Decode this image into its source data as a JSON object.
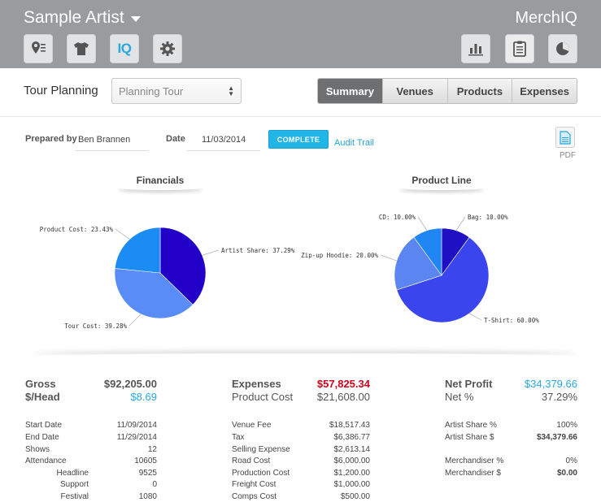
{
  "header": {
    "artist_name": "Sample Artist",
    "brand": "MerchIQ",
    "left_buttons": [
      "venue-pin-icon",
      "tshirt-icon",
      "iq-icon",
      "gear-icon"
    ],
    "iq_label": "IQ",
    "right_buttons": [
      "bar-chart-icon",
      "clipboard-icon",
      "pie-chart-icon"
    ]
  },
  "planning": {
    "label": "Tour Planning",
    "selected_tour": "Planning Tour",
    "tabs": [
      "Summary",
      "Venues",
      "Products",
      "Expenses"
    ],
    "active_tab": "Summary"
  },
  "meta": {
    "prepared_by_label": "Prepared by",
    "prepared_by": "Ben Brannen",
    "date_label": "Date",
    "date": "11/03/2014",
    "complete_label": "COMPLETE",
    "audit_label": "Audit Trail",
    "pdf_label": "PDF"
  },
  "charts": {
    "financials_title": "Financials",
    "product_title": "Product Line"
  },
  "chart_data": [
    {
      "type": "pie",
      "title": "Financials",
      "slices": [
        {
          "label": "Artist Share: 37.29%",
          "value": 37.29,
          "color": "#2200c8"
        },
        {
          "label": "Tour Cost: 39.28%",
          "value": 39.28,
          "color": "#5a8cf7"
        },
        {
          "label": "Product Cost: 23.43%",
          "value": 23.43,
          "color": "#1c8cf5"
        }
      ]
    },
    {
      "type": "pie",
      "title": "Product Line",
      "slices": [
        {
          "label": "Bag: 10.00%",
          "value": 10.0,
          "color": "#1f10c4"
        },
        {
          "label": "T-Shirt: 60.00%",
          "value": 60.0,
          "color": "#3a45ee"
        },
        {
          "label": "Zip-up Hoodie: 20.00%",
          "value": 20.0,
          "color": "#5b86f1"
        },
        {
          "label": "CD: 10.00%",
          "value": 10.0,
          "color": "#1f86f3"
        }
      ]
    }
  ],
  "summary": {
    "gross_label": "Gross",
    "gross_value": "$92,205.00",
    "perhead_label": "$/Head",
    "perhead_value": "$8.69",
    "expenses_label": "Expenses",
    "expenses_value": "$57,825.34",
    "product_cost_label": "Product Cost",
    "product_cost_value": "$21,608.00",
    "net_profit_label": "Net Profit",
    "net_profit_value": "$34,379.66",
    "net_pct_label": "Net %",
    "net_pct_value": "37.29%"
  },
  "details_left": [
    {
      "label": "Start Date",
      "value": "11/09/2014",
      "indent": false
    },
    {
      "label": "End Date",
      "value": "11/29/2014",
      "indent": false
    },
    {
      "label": "Shows",
      "value": "12",
      "indent": false
    },
    {
      "label": "Attendance",
      "value": "10605",
      "indent": false
    },
    {
      "label": "Headline",
      "value": "9525",
      "indent": true
    },
    {
      "label": "Support",
      "value": "0",
      "indent": true
    },
    {
      "label": "Festival",
      "value": "1080",
      "indent": true
    }
  ],
  "details_mid": [
    {
      "label": "Venue Fee",
      "value": "$18,517.43"
    },
    {
      "label": "Tax",
      "value": "$6,386.77"
    },
    {
      "label": "Selling Expense",
      "value": "$2,613.14"
    },
    {
      "label": "Road Cost",
      "value": "$6,000.00"
    },
    {
      "label": "Production Cost",
      "value": "$1,200.00"
    },
    {
      "label": "Freight Cost",
      "value": "$1,000.00"
    },
    {
      "label": "Comps Cost",
      "value": "$500.00"
    }
  ],
  "details_right": [
    {
      "label": "Artist Share %",
      "value": "100%",
      "bold": false
    },
    {
      "label": "Artist Share $",
      "value": "$34,379.66",
      "bold": true
    },
    {
      "label": "",
      "value": "",
      "bold": false
    },
    {
      "label": "Merchandiser %",
      "value": "0%",
      "bold": false
    },
    {
      "label": "Merchandiser $",
      "value": "$0.00",
      "bold": true
    }
  ],
  "colors": {
    "header_bg": "#999b9e",
    "accent": "#22b6e8",
    "expenses_red": "#d0021b",
    "positive_blue": "#28a9e0"
  }
}
